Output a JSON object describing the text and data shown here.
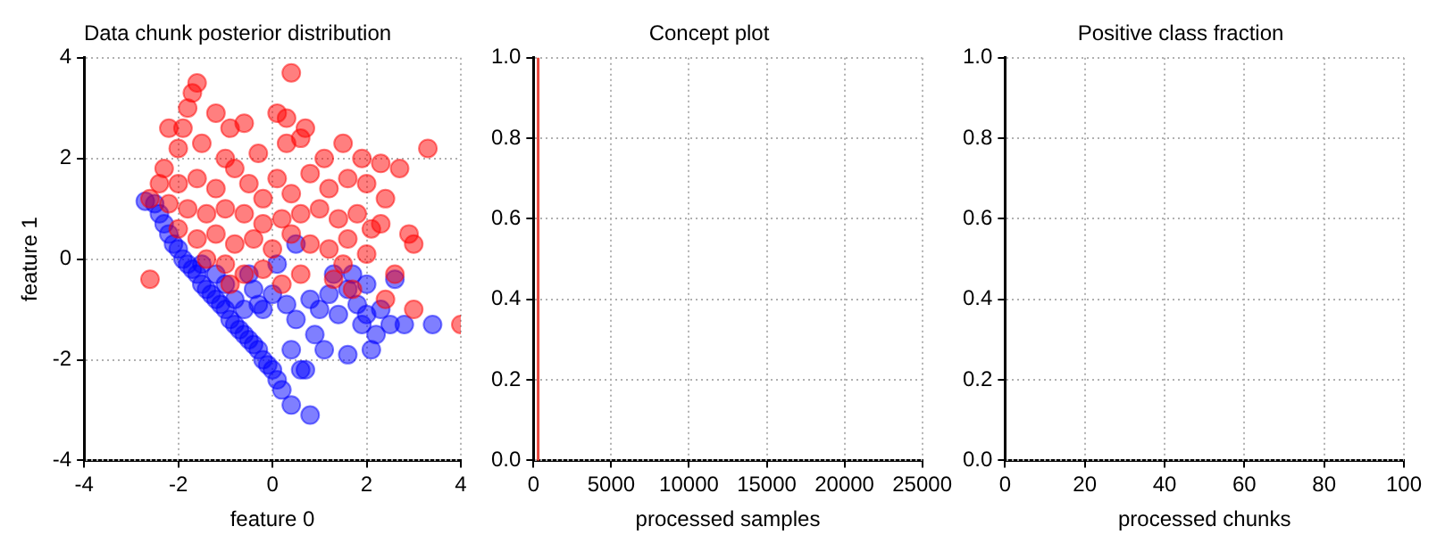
{
  "chart_data": [
    {
      "type": "scatter",
      "title": "Data chunk posterior distribution",
      "xlabel": "feature 0",
      "ylabel": "feature 1",
      "xlim": [
        -4,
        4
      ],
      "xticks": [
        -4,
        -2,
        0,
        2,
        4
      ],
      "ylim": [
        -4,
        4
      ],
      "yticks": [
        -4,
        -2,
        0,
        2,
        4
      ],
      "grid": true,
      "marker": "circle",
      "series": [
        {
          "color": "#ff0000",
          "x": [
            0.4,
            -1.6,
            -1.7,
            -1.8,
            -1.2,
            -0.9,
            -0.6,
            0.1,
            0.3,
            0.7,
            -1.9,
            -2.2,
            -2.0,
            -1.5,
            -1.0,
            -0.3,
            0.3,
            0.6,
            1.1,
            1.5,
            1.9,
            2.3,
            3.3,
            2.7,
            -2.3,
            -2.0,
            -1.6,
            -1.2,
            -0.8,
            -0.5,
            -0.2,
            0.1,
            0.4,
            0.8,
            1.2,
            1.6,
            2.0,
            2.4,
            -2.4,
            -2.6,
            -2.2,
            -1.8,
            -1.4,
            -1.0,
            -0.6,
            -0.2,
            0.2,
            0.6,
            1.0,
            1.4,
            1.8,
            2.1,
            2.9,
            3.0,
            -2.0,
            -1.6,
            -1.2,
            -0.8,
            -0.4,
            0.0,
            0.4,
            0.8,
            1.2,
            1.6,
            2.0,
            2.3,
            -1.4,
            -1.0,
            -0.6,
            -0.2,
            0.2,
            0.6,
            1.3,
            1.7,
            2.4,
            3.0,
            -2.6,
            -1.3,
            -0.9,
            4.0,
            1.5,
            2.6
          ],
          "values": [
            3.7,
            3.5,
            3.3,
            3.0,
            2.9,
            2.6,
            2.7,
            2.9,
            2.8,
            2.6,
            2.6,
            2.6,
            2.2,
            2.3,
            2.0,
            2.1,
            2.3,
            2.4,
            2.0,
            2.3,
            2.0,
            1.9,
            2.2,
            1.8,
            1.8,
            1.5,
            1.6,
            1.4,
            1.8,
            1.5,
            1.2,
            1.6,
            1.3,
            1.7,
            1.4,
            1.6,
            1.5,
            1.2,
            1.5,
            1.2,
            1.1,
            1.0,
            0.9,
            1.0,
            0.9,
            0.7,
            0.8,
            0.9,
            1.0,
            0.8,
            0.9,
            0.6,
            0.5,
            0.3,
            0.6,
            0.4,
            0.5,
            0.3,
            0.4,
            0.2,
            0.5,
            0.3,
            0.2,
            0.4,
            0.1,
            0.7,
            0.0,
            -0.1,
            -0.3,
            -0.2,
            -0.5,
            -0.3,
            -0.4,
            -0.6,
            -0.8,
            -1.0,
            -0.4,
            null,
            -0.5,
            -1.3,
            -0.1,
            -0.3
          ]
        },
        {
          "color": "#0000ff",
          "x": [
            -2.7,
            -2.5,
            -2.4,
            -2.3,
            -2.2,
            -2.1,
            -2.0,
            -1.9,
            -1.8,
            -1.7,
            -1.6,
            -1.5,
            -1.4,
            -1.3,
            -1.2,
            -1.1,
            -1.0,
            -0.9,
            -0.8,
            -0.7,
            -0.6,
            -0.5,
            -0.4,
            -0.3,
            -0.2,
            -0.1,
            0.0,
            0.1,
            0.2,
            0.4,
            0.6,
            0.8,
            -1.0,
            -0.8,
            -0.6,
            -1.5,
            -1.2,
            -0.4,
            -0.2,
            0.0,
            0.3,
            0.5,
            0.8,
            1.0,
            1.2,
            1.4,
            1.6,
            1.8,
            2.0,
            2.2,
            2.5,
            2.8,
            3.4,
            0.9,
            1.1,
            1.6,
            2.1,
            0.7,
            0.4,
            1.3,
            1.7,
            2.0,
            2.6,
            -0.5,
            0.1,
            0.5,
            -0.3,
            1.9,
            2.3
          ],
          "values": [
            1.15,
            1.1,
            0.9,
            0.7,
            0.5,
            0.3,
            0.2,
            0.0,
            -0.1,
            -0.2,
            -0.3,
            -0.5,
            -0.6,
            -0.7,
            -0.8,
            -0.9,
            -1.0,
            -1.2,
            -1.3,
            -1.4,
            -1.5,
            -1.6,
            -1.7,
            -1.8,
            -2.0,
            -2.1,
            -2.2,
            -2.4,
            -2.6,
            -2.9,
            -2.2,
            -3.1,
            -0.5,
            -0.8,
            -1.0,
            -0.1,
            -0.3,
            -0.6,
            -1.0,
            -0.7,
            -0.9,
            -1.2,
            -0.8,
            -1.0,
            -0.7,
            -1.1,
            -0.6,
            -0.9,
            -1.1,
            -1.5,
            -1.3,
            -1.3,
            -1.3,
            -1.5,
            -1.8,
            -1.9,
            -1.8,
            -2.2,
            -1.8,
            -0.3,
            -0.3,
            -0.5,
            -0.4,
            -0.3,
            -0.1,
            0.3,
            -0.9,
            -1.3,
            -1.0
          ]
        }
      ]
    },
    {
      "type": "line",
      "title": "Concept plot",
      "xlabel": "processed samples",
      "xlim": [
        0,
        25000
      ],
      "xticks": [
        0,
        5000,
        10000,
        15000,
        20000,
        25000
      ],
      "ylim": [
        0,
        1
      ],
      "yticks": [
        {
          "value": 0,
          "label": "0.0"
        },
        {
          "value": 0.2,
          "label": "0.2"
        },
        {
          "value": 0.4,
          "label": "0.4"
        },
        {
          "value": 0.6,
          "label": "0.6"
        },
        {
          "value": 0.8,
          "label": "0.8"
        },
        {
          "value": 1,
          "label": "1.0"
        }
      ],
      "grid": true,
      "series": [
        {
          "color": "#e8463c",
          "x": [
            300,
            300
          ],
          "values": [
            0,
            1
          ]
        }
      ]
    },
    {
      "type": "line",
      "title": "Positive class fraction",
      "xlabel": "processed chunks",
      "xlim": [
        0,
        100
      ],
      "xticks": [
        0,
        20,
        40,
        60,
        80,
        100
      ],
      "ylim": [
        0,
        1
      ],
      "yticks": [
        {
          "value": 0,
          "label": "0.0"
        },
        {
          "value": 0.2,
          "label": "0.2"
        },
        {
          "value": 0.4,
          "label": "0.4"
        },
        {
          "value": 0.6,
          "label": "0.6"
        },
        {
          "value": 0.8,
          "label": "0.8"
        },
        {
          "value": 1,
          "label": "1.0"
        }
      ],
      "grid": true
    }
  ]
}
